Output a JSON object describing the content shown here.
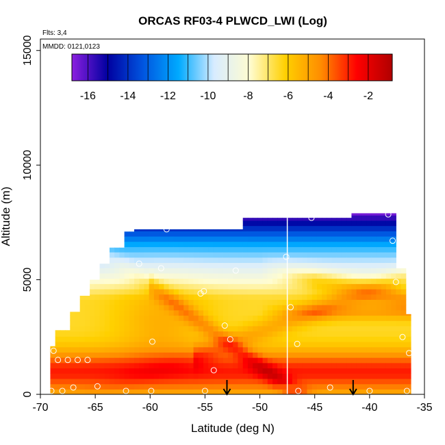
{
  "chart_data": {
    "type": "heatmap",
    "title": "ORCAS RF03-4 PLWCD_LWI (Log)",
    "xlabel": "Latitude (deg N)",
    "ylabel": "Altitude (m)",
    "xlim": [
      -70,
      -35
    ],
    "ylim": [
      0,
      15500
    ],
    "x_ticks": [
      -70,
      -65,
      -60,
      -55,
      -50,
      -45,
      -40,
      -35
    ],
    "y_ticks": [
      0,
      5000,
      10000,
      15000
    ],
    "annotations": {
      "flights": "Flts: 3,4",
      "dates": "MMDD: 0121,0123"
    },
    "colorbar": {
      "range": [
        -16.8,
        -0.8
      ],
      "ticks": [
        -16,
        -14,
        -12,
        -10,
        -8,
        -6,
        -4,
        -2
      ],
      "colors": [
        "#8c1fe0",
        "#0000a0",
        "#0055e0",
        "#00aaff",
        "#d8ecff",
        "#fffcd0",
        "#ffd000",
        "#ff8c00",
        "#ff0000",
        "#b00000"
      ]
    },
    "domain_columns": [
      {
        "lat": -69,
        "top": 2100
      },
      {
        "lat": -68,
        "top": 2800
      },
      {
        "lat": -67,
        "top": 3600
      },
      {
        "lat": -66,
        "top": 4300
      },
      {
        "lat": -65,
        "top": 5000
      },
      {
        "lat": -64,
        "top": 5700
      },
      {
        "lat": -63,
        "top": 6400
      },
      {
        "lat": -62,
        "top": 7100
      },
      {
        "lat": -58,
        "top": 7200
      },
      {
        "lat": -52,
        "top": 7200
      },
      {
        "lat": -48,
        "top": 7700
      },
      {
        "lat": -42,
        "top": 7700
      },
      {
        "lat": -41,
        "top": 7900
      },
      {
        "lat": -38,
        "top": 7900
      },
      {
        "lat": -37,
        "top": 5500
      },
      {
        "lat": -36.5,
        "top": 3500
      },
      {
        "lat": -36.3,
        "top": 0
      }
    ],
    "flight_track_points": [
      {
        "lat": -69.0,
        "alt": 150
      },
      {
        "lat": -68.8,
        "alt": 1900
      },
      {
        "lat": -68.4,
        "alt": 1500
      },
      {
        "lat": -67.5,
        "alt": 1500
      },
      {
        "lat": -66.6,
        "alt": 1500
      },
      {
        "lat": -65.7,
        "alt": 1500
      },
      {
        "lat": -68.0,
        "alt": 150
      },
      {
        "lat": -67.0,
        "alt": 300
      },
      {
        "lat": -64.8,
        "alt": 350
      },
      {
        "lat": -62.2,
        "alt": 150
      },
      {
        "lat": -59.9,
        "alt": 150
      },
      {
        "lat": -55.0,
        "alt": 150
      },
      {
        "lat": -63.9,
        "alt": 7100
      },
      {
        "lat": -58.5,
        "alt": 7200
      },
      {
        "lat": -61.0,
        "alt": 5700
      },
      {
        "lat": -59.0,
        "alt": 5500
      },
      {
        "lat": -59.8,
        "alt": 2300
      },
      {
        "lat": -55.4,
        "alt": 4400
      },
      {
        "lat": -55.1,
        "alt": 4500
      },
      {
        "lat": -54.2,
        "alt": 1050
      },
      {
        "lat": -53.2,
        "alt": 3000
      },
      {
        "lat": -52.7,
        "alt": 2400
      },
      {
        "lat": -52.2,
        "alt": 5400
      },
      {
        "lat": -47.6,
        "alt": 6000
      },
      {
        "lat": -47.2,
        "alt": 3800
      },
      {
        "lat": -46.6,
        "alt": 2200
      },
      {
        "lat": -46.5,
        "alt": 150
      },
      {
        "lat": -45.3,
        "alt": 7700
      },
      {
        "lat": -43.6,
        "alt": 300
      },
      {
        "lat": -42.1,
        "alt": 7850
      },
      {
        "lat": -40.0,
        "alt": 150
      },
      {
        "lat": -38.3,
        "alt": 7850
      },
      {
        "lat": -37.9,
        "alt": 6700
      },
      {
        "lat": -37.6,
        "alt": 4900
      },
      {
        "lat": -37.0,
        "alt": 2500
      },
      {
        "lat": -36.4,
        "alt": 1800
      },
      {
        "lat": -36.6,
        "alt": 150
      },
      {
        "lat": -34.9,
        "alt": 7700
      }
    ],
    "arrow_latitudes": [
      -53,
      -41.5
    ],
    "vertical_line_latitude": -47.5
  }
}
